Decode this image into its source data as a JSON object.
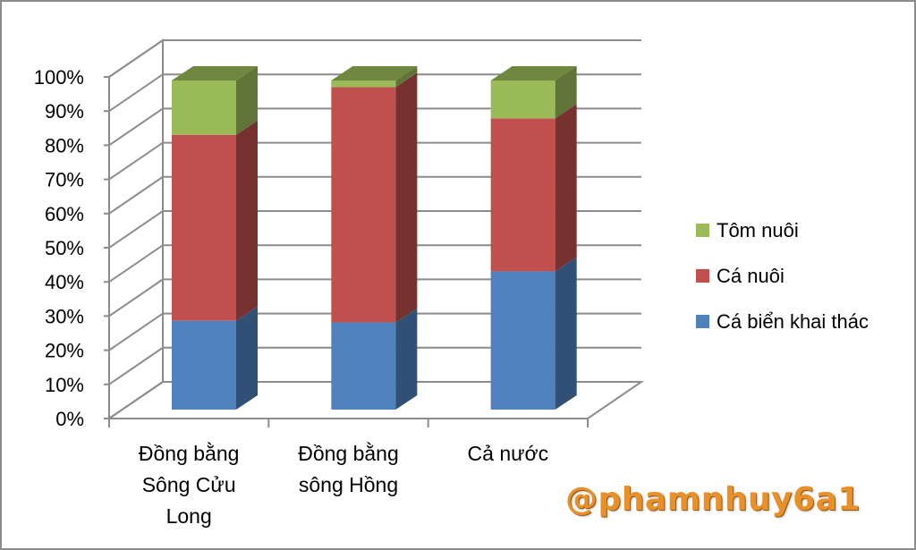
{
  "chart_data": {
    "type": "bar",
    "stacked": true,
    "three_d": true,
    "categories": [
      [
        "Đồng bằng",
        "Sông Cửu",
        "Long"
      ],
      [
        "Đồng bằng",
        "sông Hồng"
      ],
      [
        "Cả nước"
      ]
    ],
    "series": [
      {
        "name": "Cá biển khai thác",
        "values": [
          27,
          26.5,
          42
        ],
        "color": "#4f81bd"
      },
      {
        "name": "Cá nuôi",
        "values": [
          56.5,
          71.5,
          46.5
        ],
        "color": "#c0504d"
      },
      {
        "name": "Tôm nuôi",
        "values": [
          16.5,
          2,
          11.5
        ],
        "color": "#9bbb59"
      }
    ],
    "y_ticks": [
      "0%",
      "10%",
      "20%",
      "30%",
      "40%",
      "50%",
      "60%",
      "70%",
      "80%",
      "90%",
      "100%"
    ],
    "ylim": [
      0,
      100
    ],
    "grid": true,
    "legend_position": "right"
  },
  "watermark": "@phamnhuy6a1"
}
